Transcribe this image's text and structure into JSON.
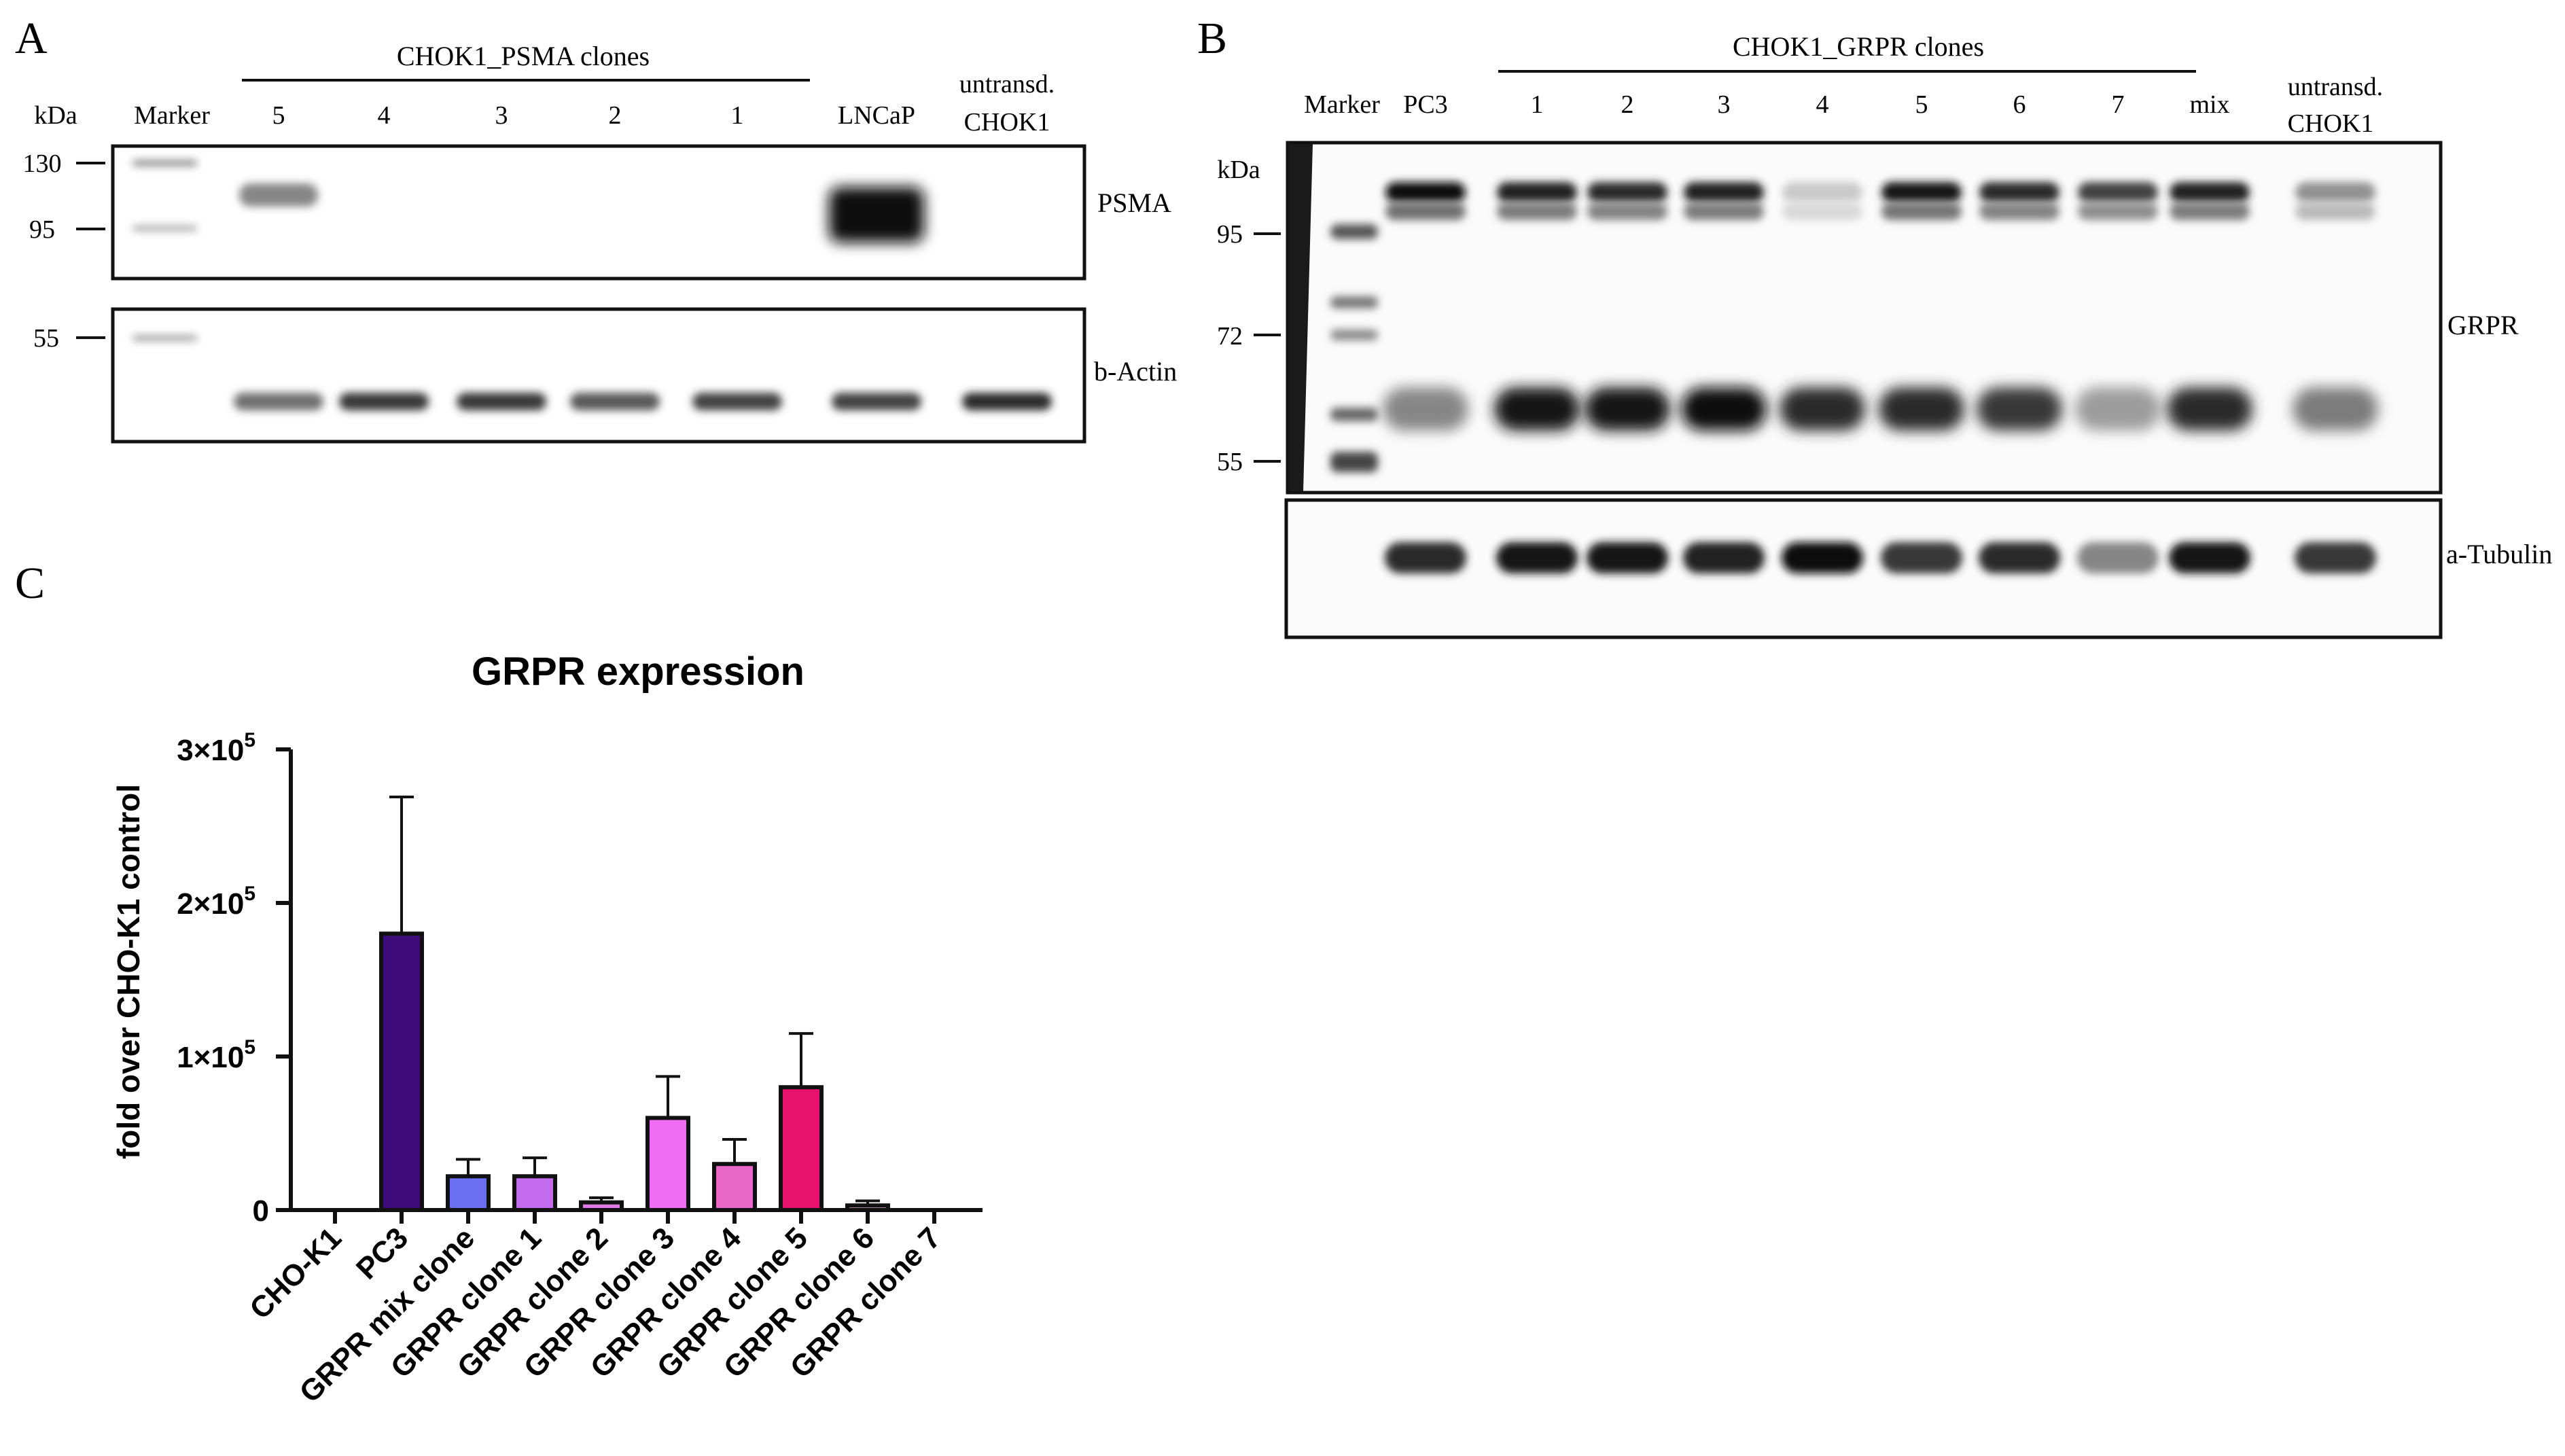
{
  "panel_a": {
    "letter": "A",
    "group_label": "CHOK1_PSMA clones",
    "unit_label": "kDa",
    "lanes": [
      "Marker",
      "5",
      "4",
      "3",
      "2",
      "1",
      "LNCaP"
    ],
    "untransduced": [
      "untransd.",
      "CHOK1"
    ],
    "markers_top": [
      "130",
      "95"
    ],
    "markers_bottom": [
      "55"
    ],
    "blot_labels": [
      "PSMA",
      "b-Actin"
    ],
    "band_levels": {
      "psma": [
        0.45,
        0,
        0,
        0,
        0,
        1.0,
        0
      ],
      "actin": [
        0.55,
        0.8,
        0.8,
        0.65,
        0.75,
        0.75,
        0.85
      ]
    }
  },
  "panel_b": {
    "letter": "B",
    "group_label": "CHOK1_GRPR clones",
    "unit_label": "kDa",
    "lanes": [
      "Marker",
      "PC3",
      "1",
      "2",
      "3",
      "4",
      "5",
      "6",
      "7",
      "mix"
    ],
    "untransduced": [
      "untransd.",
      "CHOK1"
    ],
    "markers": [
      "95",
      "72",
      "55"
    ],
    "blot_labels": [
      "GRPR",
      "a-Tubulin"
    ],
    "band_levels": {
      "grpr_upper": [
        1.0,
        0.9,
        0.85,
        0.9,
        0.15,
        0.95,
        0.85,
        0.75,
        0.9,
        0.4
      ],
      "grpr_lower": [
        0.45,
        0.95,
        0.95,
        1.0,
        0.85,
        0.85,
        0.8,
        0.35,
        0.85,
        0.5
      ],
      "tubulin": [
        0.85,
        0.95,
        0.95,
        0.9,
        1.0,
        0.8,
        0.85,
        0.45,
        0.95,
        0.8
      ]
    }
  },
  "panel_c": {
    "letter": "C",
    "chart_data": {
      "type": "bar",
      "title": "GRPR expression",
      "ylabel": "fold over CHO-K1 control",
      "xlabel": "",
      "ylim": [
        0,
        300000
      ],
      "yticks": [
        {
          "value": 0,
          "base": "0",
          "exp": ""
        },
        {
          "value": 100000,
          "base": "1×10",
          "exp": "5"
        },
        {
          "value": 200000,
          "base": "2×10",
          "exp": "5"
        },
        {
          "value": 300000,
          "base": "3×10",
          "exp": "5"
        }
      ],
      "categories": [
        "CHO-K1",
        "PC3",
        "GRPR mix clone",
        "GRPR clone 1",
        "GRPR clone 2",
        "GRPR clone 3",
        "GRPR clone 4",
        "GRPR clone 5",
        "GRPR clone 6",
        "GRPR clone 7"
      ],
      "values": [
        0,
        180000,
        22000,
        22000,
        5000,
        60000,
        30000,
        80000,
        3000,
        0
      ],
      "errors": [
        0,
        89000,
        11000,
        12000,
        3000,
        27000,
        16000,
        35000,
        3000,
        0
      ],
      "colors": [
        "#ffffff",
        "#3d0c7a",
        "#6a6ff2",
        "#c46cf0",
        "#e07ae8",
        "#f06cf2",
        "#e867c9",
        "#e8136f",
        "#d9a0d0",
        "#ffffff"
      ]
    }
  }
}
